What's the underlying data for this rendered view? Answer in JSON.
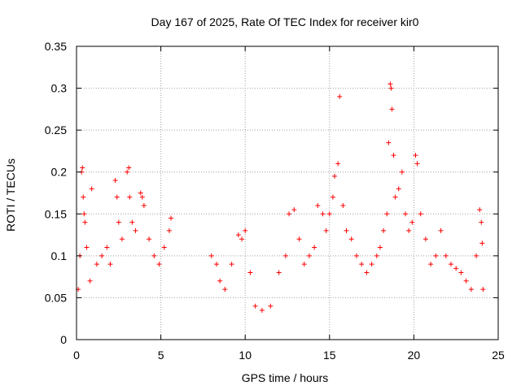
{
  "chart_data": {
    "type": "scatter",
    "title": "Day 167 of 2025, Rate Of TEC Index for receiver kir0",
    "xlabel": "GPS time / hours",
    "ylabel": "ROTI / TECUs",
    "xlim": [
      0,
      25
    ],
    "ylim": [
      0,
      0.35
    ],
    "x_ticks": [
      0,
      5,
      10,
      15,
      20,
      25
    ],
    "y_ticks": [
      0,
      0.05,
      0.1,
      0.15,
      0.2,
      0.25,
      0.3,
      0.35
    ],
    "x_tick_labels": [
      "0",
      "5",
      "10",
      "15",
      "20",
      "25"
    ],
    "y_tick_labels": [
      "0",
      "0.05",
      "0.1",
      "0.15",
      "0.2",
      "0.25",
      "0.3",
      "0.35"
    ],
    "grid": true,
    "marker": "+",
    "marker_color": "#ff0000",
    "series": [
      {
        "name": "ROTI",
        "points": [
          [
            0.1,
            0.06
          ],
          [
            0.2,
            0.1
          ],
          [
            0.3,
            0.2
          ],
          [
            0.35,
            0.205
          ],
          [
            0.4,
            0.17
          ],
          [
            0.45,
            0.15
          ],
          [
            0.5,
            0.14
          ],
          [
            0.6,
            0.11
          ],
          [
            0.8,
            0.07
          ],
          [
            0.9,
            0.18
          ],
          [
            1.2,
            0.09
          ],
          [
            1.5,
            0.1
          ],
          [
            1.8,
            0.11
          ],
          [
            2.0,
            0.09
          ],
          [
            2.3,
            0.19
          ],
          [
            2.4,
            0.17
          ],
          [
            2.5,
            0.14
          ],
          [
            2.7,
            0.12
          ],
          [
            3.0,
            0.2
          ],
          [
            3.1,
            0.205
          ],
          [
            3.15,
            0.17
          ],
          [
            3.3,
            0.14
          ],
          [
            3.5,
            0.13
          ],
          [
            3.8,
            0.175
          ],
          [
            3.9,
            0.17
          ],
          [
            4.0,
            0.16
          ],
          [
            4.3,
            0.12
          ],
          [
            4.6,
            0.1
          ],
          [
            4.9,
            0.09
          ],
          [
            5.2,
            0.11
          ],
          [
            5.5,
            0.13
          ],
          [
            5.6,
            0.145
          ],
          [
            8.0,
            0.1
          ],
          [
            8.3,
            0.09
          ],
          [
            8.5,
            0.07
          ],
          [
            8.8,
            0.06
          ],
          [
            9.2,
            0.09
          ],
          [
            9.6,
            0.125
          ],
          [
            9.8,
            0.12
          ],
          [
            10.0,
            0.13
          ],
          [
            10.3,
            0.08
          ],
          [
            10.6,
            0.04
          ],
          [
            11.0,
            0.035
          ],
          [
            11.5,
            0.04
          ],
          [
            12.0,
            0.08
          ],
          [
            12.4,
            0.1
          ],
          [
            12.6,
            0.15
          ],
          [
            12.9,
            0.155
          ],
          [
            13.2,
            0.12
          ],
          [
            13.5,
            0.09
          ],
          [
            13.8,
            0.1
          ],
          [
            14.1,
            0.11
          ],
          [
            14.3,
            0.16
          ],
          [
            14.6,
            0.15
          ],
          [
            14.8,
            0.13
          ],
          [
            15.0,
            0.15
          ],
          [
            15.2,
            0.17
          ],
          [
            15.3,
            0.195
          ],
          [
            15.5,
            0.21
          ],
          [
            15.6,
            0.29
          ],
          [
            15.8,
            0.16
          ],
          [
            16.0,
            0.13
          ],
          [
            16.3,
            0.12
          ],
          [
            16.6,
            0.1
          ],
          [
            16.9,
            0.09
          ],
          [
            17.2,
            0.08
          ],
          [
            17.5,
            0.09
          ],
          [
            17.8,
            0.1
          ],
          [
            18.0,
            0.11
          ],
          [
            18.2,
            0.13
          ],
          [
            18.4,
            0.15
          ],
          [
            18.5,
            0.235
          ],
          [
            18.6,
            0.305
          ],
          [
            18.65,
            0.3
          ],
          [
            18.7,
            0.275
          ],
          [
            18.8,
            0.22
          ],
          [
            18.9,
            0.17
          ],
          [
            19.1,
            0.18
          ],
          [
            19.3,
            0.2
          ],
          [
            19.5,
            0.15
          ],
          [
            19.7,
            0.13
          ],
          [
            19.9,
            0.14
          ],
          [
            20.1,
            0.22
          ],
          [
            20.2,
            0.21
          ],
          [
            20.4,
            0.15
          ],
          [
            20.7,
            0.12
          ],
          [
            21.0,
            0.09
          ],
          [
            21.3,
            0.1
          ],
          [
            21.6,
            0.13
          ],
          [
            21.9,
            0.1
          ],
          [
            22.2,
            0.09
          ],
          [
            22.5,
            0.085
          ],
          [
            22.8,
            0.08
          ],
          [
            23.1,
            0.07
          ],
          [
            23.4,
            0.06
          ],
          [
            23.7,
            0.1
          ],
          [
            23.9,
            0.155
          ],
          [
            24.0,
            0.14
          ],
          [
            24.05,
            0.115
          ],
          [
            24.1,
            0.06
          ]
        ]
      }
    ]
  }
}
